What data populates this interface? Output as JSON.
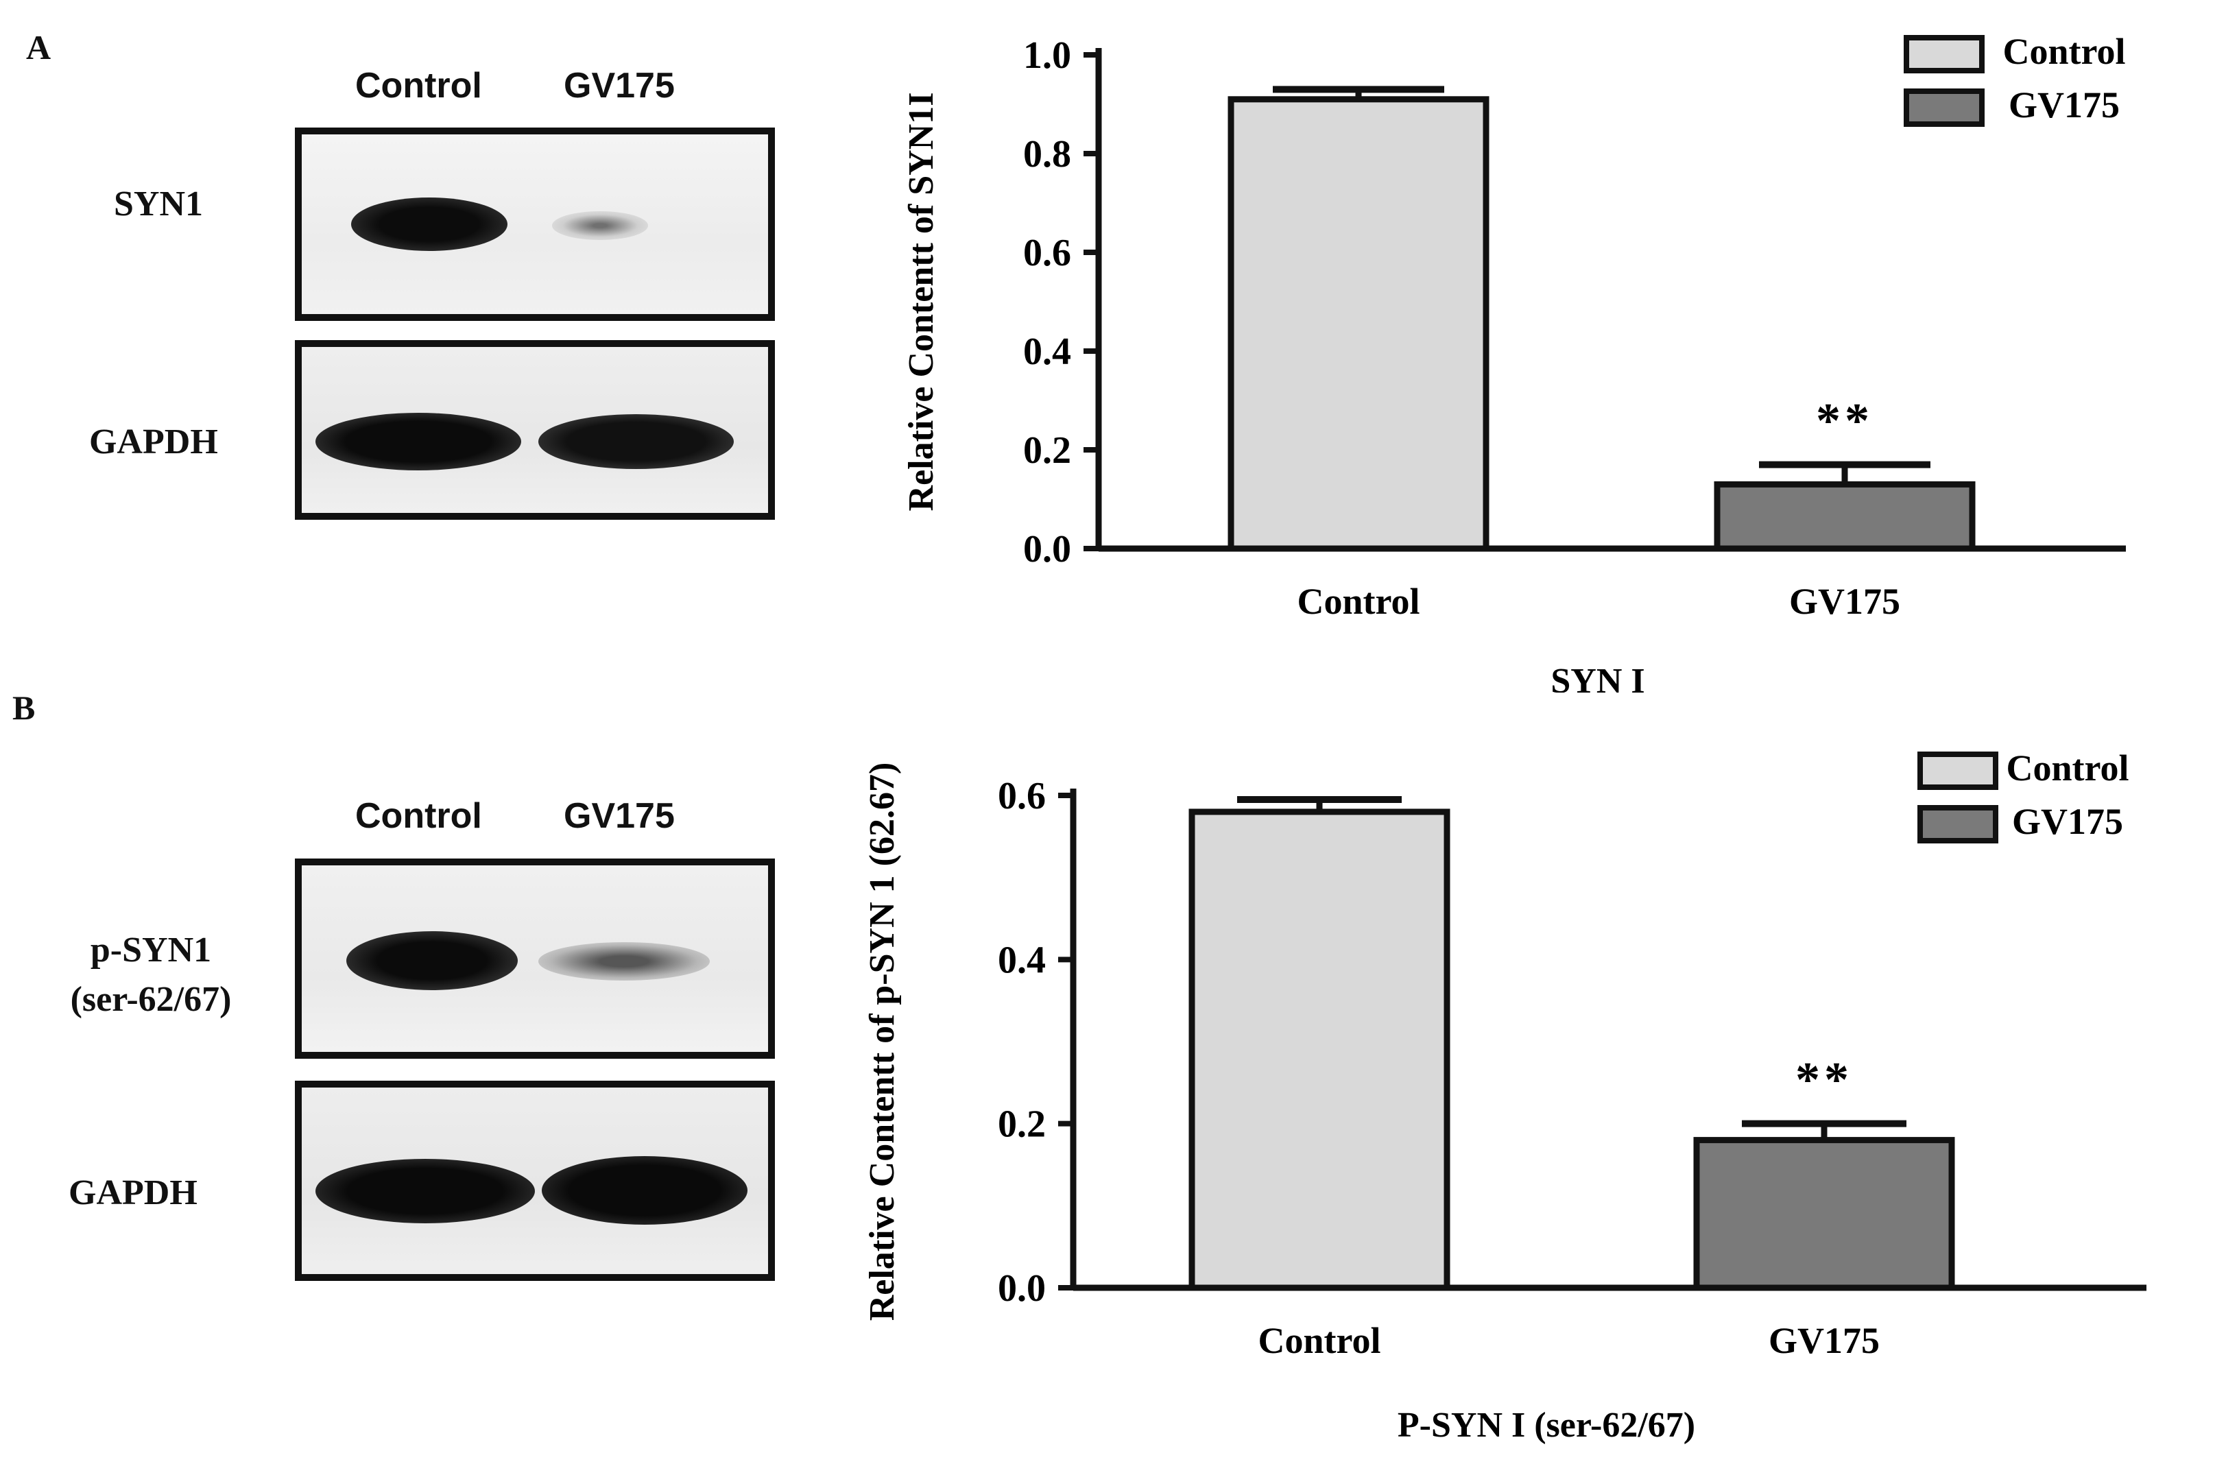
{
  "panels": [
    {
      "letter": "A",
      "blot": {
        "lanes": [
          "Control",
          "GV175"
        ],
        "rows": [
          {
            "label": "SYN1",
            "intensity": [
              1.0,
              0.25
            ]
          },
          {
            "label": "GAPDH",
            "intensity": [
              1.0,
              0.95
            ]
          }
        ]
      }
    },
    {
      "letter": "B",
      "blot": {
        "lanes": [
          "Control",
          "GV175"
        ],
        "rows": [
          {
            "label_lines": [
              "p-SYN1",
              "(ser-62/67)"
            ],
            "intensity": [
              1.0,
              0.35
            ]
          },
          {
            "label": "GAPDH",
            "intensity": [
              1.0,
              1.0
            ]
          }
        ]
      }
    }
  ],
  "chart_data": [
    {
      "type": "bar",
      "categories": [
        "Control",
        "GV175"
      ],
      "values": [
        0.91,
        0.13
      ],
      "errors": [
        0.02,
        0.04
      ],
      "significance": [
        "",
        "**"
      ],
      "ylabel": "Relative Contentt of SYN1I",
      "xlabel": "SYN I",
      "ylim": [
        0,
        1.0
      ],
      "yticks": [
        "0.0",
        "0.2",
        "0.4",
        "0.6",
        "0.8",
        "1.0"
      ],
      "legend": [
        "Control",
        "GV175"
      ],
      "legend_position": "top-right",
      "colors": [
        "#d9d9d9",
        "#7a7a7a"
      ],
      "grid": false
    },
    {
      "type": "bar",
      "categories": [
        "Control",
        "GV175"
      ],
      "values": [
        0.58,
        0.18
      ],
      "errors": [
        0.015,
        0.02
      ],
      "significance": [
        "",
        "**"
      ],
      "ylabel": "Relative Contentt of p-SYN 1 (62.67)",
      "xlabel": "P-SYN I (ser-62/67)",
      "ylim": [
        0,
        0.6
      ],
      "yticks": [
        "0.0",
        "0.2",
        "0.4",
        "0.6"
      ],
      "legend": [
        "Control",
        "GV175"
      ],
      "legend_position": "top-right",
      "colors": [
        "#d9d9d9",
        "#7a7a7a"
      ],
      "grid": false
    }
  ]
}
